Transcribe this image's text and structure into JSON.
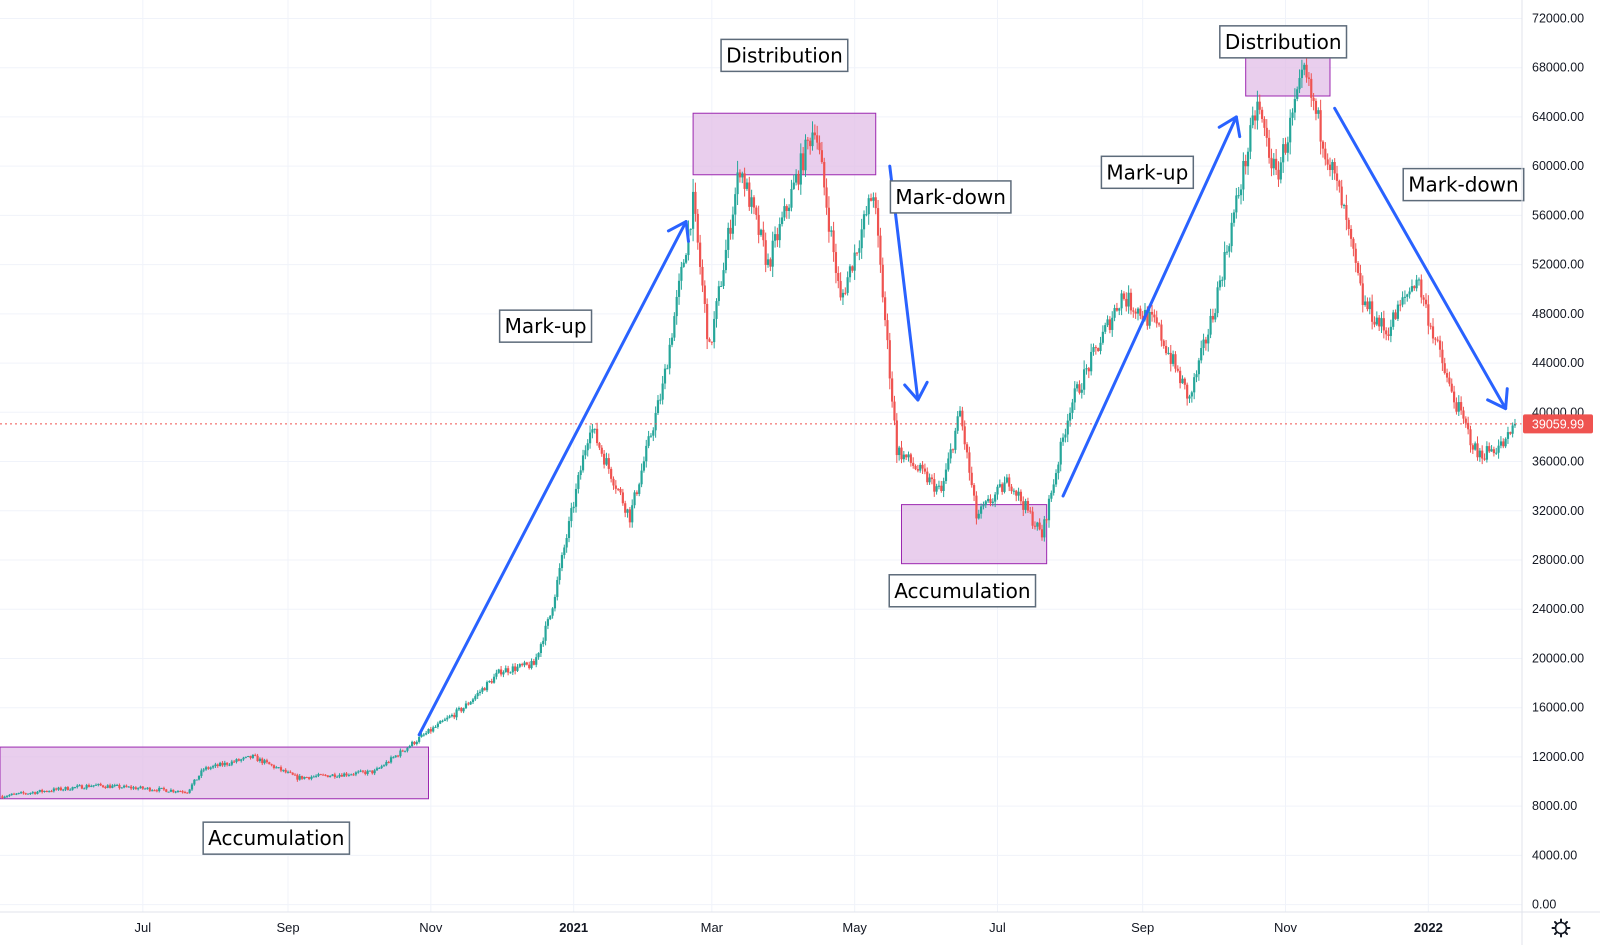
{
  "chart_data": {
    "type": "candlestick",
    "title": "",
    "xlabel": "",
    "ylabel": "",
    "y_axis": {
      "ylim": [
        -600,
        73500
      ],
      "ticks": [
        "72000.00",
        "68000.00",
        "64000.00",
        "60000.00",
        "56000.00",
        "52000.00",
        "48000.00",
        "44000.00",
        "40000.00",
        "36000.00",
        "32000.00",
        "28000.00",
        "24000.00",
        "20000.00",
        "16000.00",
        "12000.00",
        "8000.00",
        "4000.00",
        "0.00"
      ]
    },
    "x_axis": {
      "range": [
        "2020-05-01",
        "2022-02-10"
      ],
      "ticks": [
        {
          "label": "Jul",
          "date": "2020-07-01",
          "bold": false
        },
        {
          "label": "Sep",
          "date": "2020-09-01",
          "bold": false
        },
        {
          "label": "Nov",
          "date": "2020-11-01",
          "bold": false
        },
        {
          "label": "2021",
          "date": "2021-01-01",
          "bold": true
        },
        {
          "label": "Mar",
          "date": "2021-03-01",
          "bold": false
        },
        {
          "label": "May",
          "date": "2021-05-01",
          "bold": false
        },
        {
          "label": "Jul",
          "date": "2021-07-01",
          "bold": false
        },
        {
          "label": "Sep",
          "date": "2021-09-01",
          "bold": false
        },
        {
          "label": "Nov",
          "date": "2021-11-01",
          "bold": false
        },
        {
          "label": "2022",
          "date": "2022-01-01",
          "bold": true
        }
      ]
    },
    "grid": true,
    "colors": {
      "up": "#26a69a",
      "down": "#ef5350",
      "arrow": "#2962ff",
      "zone_fill": "#e1bee7",
      "zone_stroke": "#9c27b0",
      "price_tag": "#ef5350"
    },
    "last_price": {
      "value": 39059.99,
      "label": "39059.99"
    },
    "price_path": [
      {
        "date": "2020-05-01",
        "price": 8800
      },
      {
        "date": "2020-06-10",
        "price": 9700
      },
      {
        "date": "2020-07-20",
        "price": 9200
      },
      {
        "date": "2020-07-27",
        "price": 11000
      },
      {
        "date": "2020-08-17",
        "price": 12000
      },
      {
        "date": "2020-09-05",
        "price": 10300
      },
      {
        "date": "2020-10-08",
        "price": 10800
      },
      {
        "date": "2020-10-27",
        "price": 13500
      },
      {
        "date": "2020-11-15",
        "price": 16000
      },
      {
        "date": "2020-12-01",
        "price": 19000
      },
      {
        "date": "2020-12-15",
        "price": 19500
      },
      {
        "date": "2020-12-22",
        "price": 23500
      },
      {
        "date": "2021-01-08",
        "price": 39000
      },
      {
        "date": "2021-01-25",
        "price": 31500
      },
      {
        "date": "2021-02-08",
        "price": 42000
      },
      {
        "date": "2021-02-21",
        "price": 57000
      },
      {
        "date": "2021-02-28",
        "price": 45000
      },
      {
        "date": "2021-03-13",
        "price": 60000
      },
      {
        "date": "2021-03-25",
        "price": 52000
      },
      {
        "date": "2021-04-14",
        "price": 63500
      },
      {
        "date": "2021-04-25",
        "price": 49000
      },
      {
        "date": "2021-05-09",
        "price": 58000
      },
      {
        "date": "2021-05-19",
        "price": 37000
      },
      {
        "date": "2021-06-07",
        "price": 33500
      },
      {
        "date": "2021-06-15",
        "price": 40000
      },
      {
        "date": "2021-06-22",
        "price": 31500
      },
      {
        "date": "2021-07-06",
        "price": 34500
      },
      {
        "date": "2021-07-20",
        "price": 30000
      },
      {
        "date": "2021-08-01",
        "price": 40500
      },
      {
        "date": "2021-08-23",
        "price": 49500
      },
      {
        "date": "2021-09-07",
        "price": 47000
      },
      {
        "date": "2021-09-21",
        "price": 41000
      },
      {
        "date": "2021-10-01",
        "price": 48000
      },
      {
        "date": "2021-10-20",
        "price": 65000
      },
      {
        "date": "2021-10-28",
        "price": 59000
      },
      {
        "date": "2021-11-09",
        "price": 67500
      },
      {
        "date": "2021-11-25",
        "price": 57000
      },
      {
        "date": "2021-12-04",
        "price": 49000
      },
      {
        "date": "2021-12-14",
        "price": 46500
      },
      {
        "date": "2021-12-27",
        "price": 51000
      },
      {
        "date": "2022-01-10",
        "price": 42000
      },
      {
        "date": "2022-01-22",
        "price": 36500
      },
      {
        "date": "2022-02-03",
        "price": 37500
      },
      {
        "date": "2022-02-07",
        "price": 39060
      }
    ],
    "zones": [
      {
        "phase": "accumulation",
        "start": "2020-05-01",
        "end": "2020-10-31",
        "low": 8600,
        "high": 12800
      },
      {
        "phase": "distribution",
        "start": "2021-02-21",
        "end": "2021-05-10",
        "low": 59300,
        "high": 64300
      },
      {
        "phase": "accumulation",
        "start": "2021-05-21",
        "end": "2021-07-22",
        "low": 27700,
        "high": 32500
      },
      {
        "phase": "distribution",
        "start": "2021-10-15",
        "end": "2021-11-20",
        "low": 65700,
        "high": 69300
      }
    ],
    "arrows": [
      {
        "phase": "markup",
        "from": {
          "date": "2020-10-27",
          "price": 13800
        },
        "to": {
          "date": "2021-02-18",
          "price": 55500
        }
      },
      {
        "phase": "markdown",
        "from": {
          "date": "2021-05-16",
          "price": 60000
        },
        "to": {
          "date": "2021-05-28",
          "price": 41000
        }
      },
      {
        "phase": "markup",
        "from": {
          "date": "2021-07-29",
          "price": 33200
        },
        "to": {
          "date": "2021-10-11",
          "price": 64000
        }
      },
      {
        "phase": "markdown",
        "from": {
          "date": "2021-11-22",
          "price": 64700
        },
        "to": {
          "date": "2022-02-03",
          "price": 40300
        }
      }
    ],
    "annotations": [
      {
        "text": "Accumulation",
        "date": "2020-08-27",
        "price": 5400
      },
      {
        "text": "Mark-up",
        "date": "2020-12-20",
        "price": 47000
      },
      {
        "text": "Distribution",
        "date": "2021-04-01",
        "price": 69000
      },
      {
        "text": "Mark-down",
        "date": "2021-06-11",
        "price": 57500
      },
      {
        "text": "Accumulation",
        "date": "2021-06-16",
        "price": 25500
      },
      {
        "text": "Mark-up",
        "date": "2021-09-03",
        "price": 59500
      },
      {
        "text": "Distribution",
        "date": "2021-10-31",
        "price": 70100
      },
      {
        "text": "Mark-down",
        "date": "2022-01-16",
        "price": 58500
      }
    ]
  }
}
